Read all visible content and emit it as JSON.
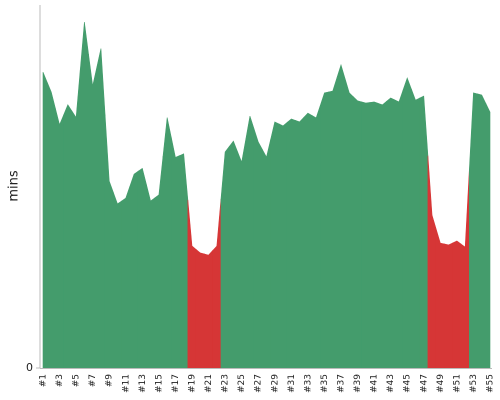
{
  "chart_data": {
    "type": "area",
    "y_label": "mins",
    "categories": [
      "#1",
      null,
      "#3",
      null,
      "#5",
      null,
      "#7",
      null,
      "#9",
      null,
      "#11",
      null,
      "#13",
      null,
      "#15",
      null,
      "#17",
      null,
      "#19",
      null,
      "#21",
      null,
      "#23",
      null,
      "#25",
      null,
      "#27",
      null,
      "#29",
      null,
      "#31",
      null,
      "#33",
      null,
      "#35",
      null,
      "#37",
      null,
      "#39",
      null,
      "#41",
      null,
      "#43",
      null,
      "#45",
      null,
      "#47",
      null,
      "#49",
      null,
      "#51",
      null,
      "#53",
      null,
      "#55"
    ],
    "values": [
      81.5,
      76,
      67,
      72.5,
      69,
      95.3,
      77.7,
      88,
      51.5,
      45.2,
      46.8,
      53.4,
      55,
      46,
      47.7,
      69,
      58,
      59,
      33.6,
      31.7,
      31.1,
      33.6,
      59.5,
      62.5,
      56.7,
      69.4,
      62.3,
      58.1,
      67.8,
      66.7,
      68.6,
      67.8,
      70.2,
      68.9,
      75.8,
      76.3,
      83.5,
      75.8,
      73.6,
      73,
      73.3,
      72.5,
      74.4,
      73.3,
      79.9,
      73.8,
      74.9,
      42.1,
      34.4,
      33.9,
      35,
      33.3,
      75.8,
      75.2,
      70.5
    ],
    "point_colors": [
      "#449c6c",
      "#449c6c",
      "#449c6c",
      "#449c6c",
      "#449c6c",
      "#449c6c",
      "#449c6c",
      "#449c6c",
      "#449c6c",
      "#449c6c",
      "#449c6c",
      "#449c6c",
      "#449c6c",
      "#449c6c",
      "#449c6c",
      "#449c6c",
      "#449c6c",
      "#449c6c",
      "#d63636",
      "#d63636",
      "#d63636",
      "#d63636",
      "#449c6c",
      "#449c6c",
      "#449c6c",
      "#449c6c",
      "#449c6c",
      "#449c6c",
      "#449c6c",
      "#449c6c",
      "#449c6c",
      "#449c6c",
      "#449c6c",
      "#449c6c",
      "#449c6c",
      "#449c6c",
      "#449c6c",
      "#449c6c",
      "#449c6c",
      "#449c6c",
      "#449c6c",
      "#449c6c",
      "#449c6c",
      "#449c6c",
      "#449c6c",
      "#449c6c",
      "#449c6c",
      "#d63636",
      "#d63636",
      "#d63636",
      "#d63636",
      "#d63636",
      "#449c6c",
      "#449c6c",
      "#449c6c"
    ],
    "ylim": [
      0,
      100
    ],
    "yticks": [
      0
    ]
  }
}
